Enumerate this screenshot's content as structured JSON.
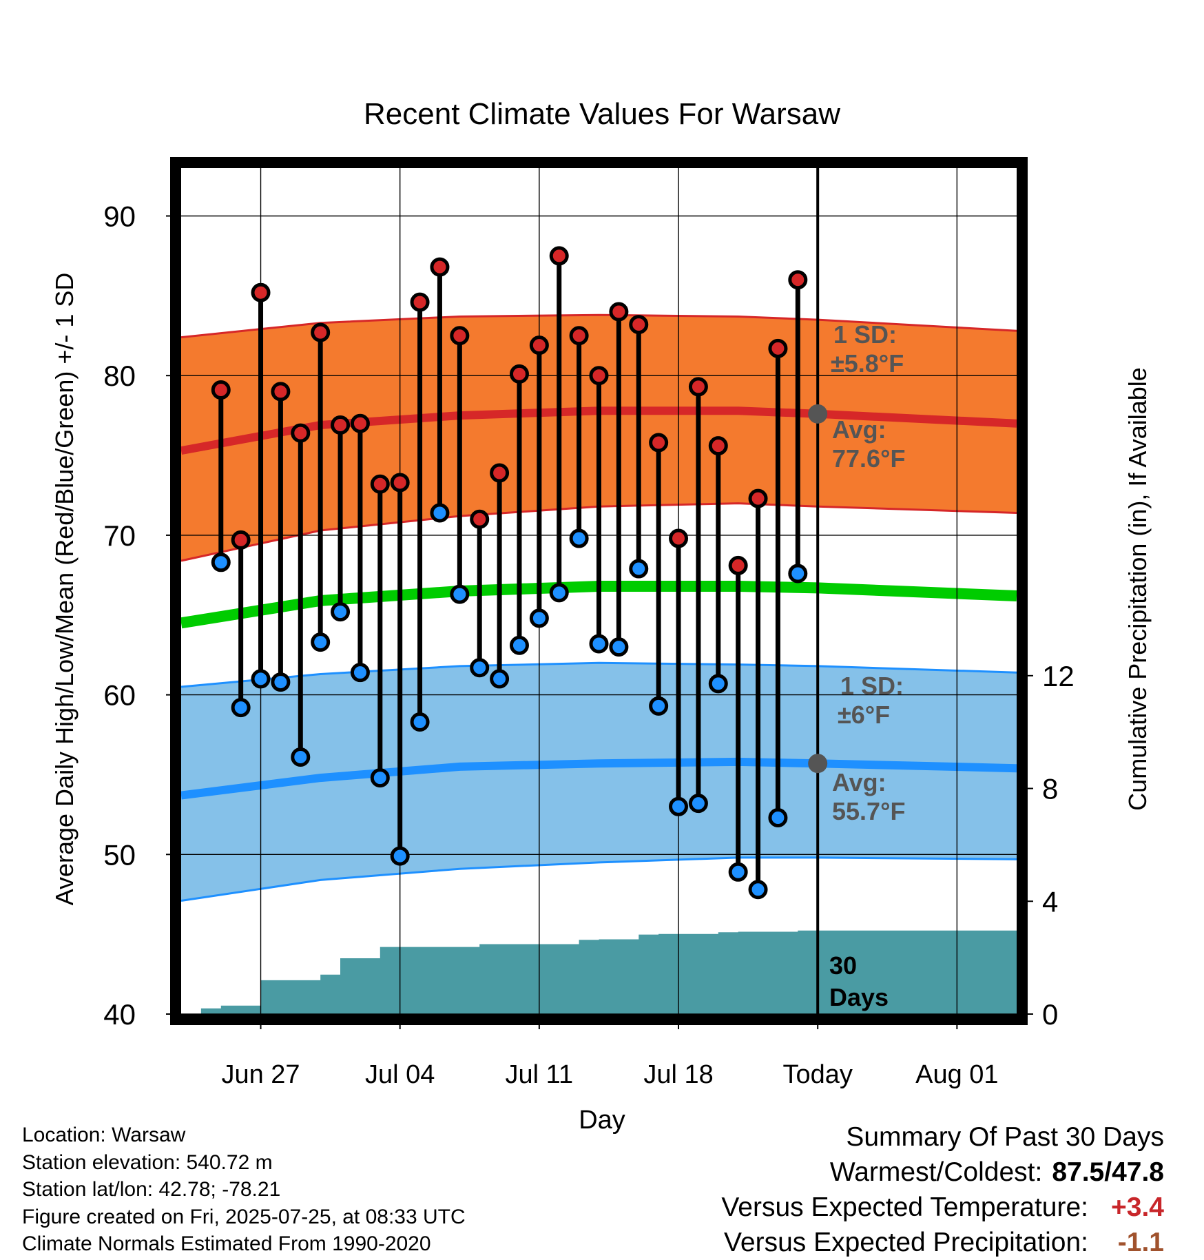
{
  "chart_data": {
    "type": "line",
    "title": "Recent Climate Values For Warsaw",
    "xlabel": "Day",
    "ylabel": "Average Daily High/Low/Mean (Red/Blue/Green) +/- 1 SD",
    "ylabel_right": "Cumulative Precipitation (in), If Available",
    "ylim": [
      40,
      93
    ],
    "ylim_right": [
      0,
      30
    ],
    "yticks": [
      "40",
      "50",
      "60",
      "70",
      "80",
      "90"
    ],
    "yticks_right": [
      "0",
      "4",
      "8",
      "12"
    ],
    "xlim": [
      "2025-06-23",
      "2025-08-04"
    ],
    "xtick_labels": [
      {
        "date": "2025-06-27",
        "label": "Jun 27"
      },
      {
        "date": "2025-07-04",
        "label": "Jul 04"
      },
      {
        "date": "2025-07-11",
        "label": "Jul 11"
      },
      {
        "date": "2025-07-18",
        "label": "Jul 18"
      },
      {
        "date": "2025-07-25",
        "label": "Today"
      },
      {
        "date": "2025-08-01",
        "label": "Aug 01"
      }
    ],
    "today": "2025-07-25",
    "days": [
      "2025-06-25",
      "2025-06-26",
      "2025-06-27",
      "2025-06-28",
      "2025-06-29",
      "2025-06-30",
      "2025-07-01",
      "2025-07-02",
      "2025-07-03",
      "2025-07-04",
      "2025-07-05",
      "2025-07-06",
      "2025-07-07",
      "2025-07-08",
      "2025-07-09",
      "2025-07-10",
      "2025-07-11",
      "2025-07-12",
      "2025-07-13",
      "2025-07-14",
      "2025-07-15",
      "2025-07-16",
      "2025-07-17",
      "2025-07-18",
      "2025-07-19",
      "2025-07-20",
      "2025-07-21",
      "2025-07-22",
      "2025-07-23",
      "2025-07-24"
    ],
    "highs": [
      79.1,
      69.7,
      85.2,
      79.0,
      76.4,
      82.7,
      76.9,
      77.0,
      73.2,
      73.3,
      84.6,
      86.8,
      82.5,
      71.0,
      73.9,
      80.1,
      81.9,
      87.5,
      82.5,
      80.0,
      84.0,
      83.2,
      75.8,
      69.8,
      79.3,
      75.6,
      68.1,
      72.3,
      81.7,
      86.0
    ],
    "lows": [
      68.3,
      59.2,
      61.0,
      60.8,
      56.1,
      63.3,
      65.2,
      61.4,
      54.8,
      49.9,
      58.3,
      71.4,
      66.3,
      61.7,
      61.0,
      63.1,
      64.8,
      66.4,
      69.8,
      63.2,
      63.0,
      67.9,
      59.3,
      53.0,
      53.2,
      60.7,
      48.9,
      47.8,
      52.3,
      67.6
    ],
    "normal_dates": [
      "2025-06-23",
      "2025-06-30",
      "2025-07-07",
      "2025-07-14",
      "2025-07-21",
      "2025-07-25",
      "2025-08-04"
    ],
    "normal_high": [
      75.3,
      76.9,
      77.5,
      77.8,
      77.8,
      77.6,
      77.0
    ],
    "normal_low": [
      53.7,
      54.8,
      55.5,
      55.7,
      55.8,
      55.7,
      55.4
    ],
    "normal_mean": [
      64.5,
      65.9,
      66.5,
      66.8,
      66.8,
      66.7,
      66.2
    ],
    "sd_high": 5.8,
    "sd_low": 6.0,
    "high_band_upper": [
      82.4,
      83.3,
      83.7,
      83.8,
      83.7,
      83.5,
      82.8
    ],
    "high_band_lower": [
      68.4,
      70.3,
      71.2,
      71.8,
      72.0,
      71.8,
      71.4
    ],
    "low_band_upper": [
      60.5,
      61.3,
      61.8,
      62.0,
      61.9,
      61.8,
      61.4
    ],
    "low_band_lower": [
      47.1,
      48.4,
      49.1,
      49.5,
      49.8,
      49.8,
      49.7
    ],
    "precip_dates": [
      "2025-06-23",
      "2025-06-24",
      "2025-06-25",
      "2025-06-26",
      "2025-06-27",
      "2025-06-28",
      "2025-06-29",
      "2025-06-30",
      "2025-07-01",
      "2025-07-02",
      "2025-07-03",
      "2025-07-04",
      "2025-07-05",
      "2025-07-06",
      "2025-07-07",
      "2025-07-08",
      "2025-07-09",
      "2025-07-10",
      "2025-07-11",
      "2025-07-12",
      "2025-07-13",
      "2025-07-14",
      "2025-07-15",
      "2025-07-16",
      "2025-07-17",
      "2025-07-18",
      "2025-07-19",
      "2025-07-20",
      "2025-07-21",
      "2025-07-22",
      "2025-07-23",
      "2025-07-24",
      "2025-07-25",
      "2025-08-04"
    ],
    "precip_cumulative": [
      0.0,
      0.2,
      0.3,
      0.3,
      1.2,
      1.2,
      1.2,
      1.4,
      1.98,
      1.98,
      2.38,
      2.38,
      2.38,
      2.38,
      2.38,
      2.48,
      2.48,
      2.48,
      2.48,
      2.48,
      2.63,
      2.65,
      2.65,
      2.82,
      2.84,
      2.84,
      2.84,
      2.9,
      2.92,
      2.92,
      2.92,
      2.96,
      2.96,
      2.96
    ],
    "colors": {
      "high": "#d62728",
      "high_band": "#f47a2e",
      "low": "#1e90ff",
      "low_band": "#85c1e9",
      "mean": "#00cc00",
      "precip": "#4a9ba3",
      "annotation": "#555555"
    },
    "annotations": {
      "high_sd_label": "1 SD:",
      "high_sd_value": "±5.8°F",
      "high_avg_label": "Avg:",
      "high_avg_value": "77.6°F",
      "low_sd_label": "1 SD:",
      "low_sd_value": "±6°F",
      "low_avg_label": "Avg:",
      "low_avg_value": "55.7°F",
      "days_count": "30",
      "days_word": "Days"
    },
    "grid": true
  },
  "info": {
    "location": "Location: Warsaw",
    "elevation": "Station elevation: 540.72 m",
    "latlon": "Station lat/lon: 42.78; -78.21",
    "created": "Figure created on Fri, 2025-07-25, at 08:33 UTC",
    "normals": "Climate Normals Estimated From 1990-2020"
  },
  "summary": {
    "heading": "Summary Of Past 30 Days",
    "warm_cold_label": "Warmest/Coldest:",
    "warm_cold_value": "87.5/47.8",
    "temp_label": "Versus Expected Temperature:",
    "temp_value": "+3.4",
    "precip_label": "Versus Expected Precipitation:",
    "precip_value": "-1.1"
  }
}
